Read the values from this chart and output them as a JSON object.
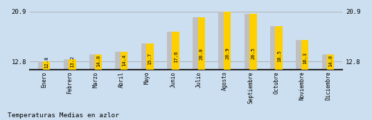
{
  "categories": [
    "Enero",
    "Febrero",
    "Marzo",
    "Abril",
    "Mayo",
    "Junio",
    "Julio",
    "Agosto",
    "Septiembre",
    "Octubre",
    "Noviembre",
    "Diciembre"
  ],
  "values": [
    12.8,
    13.2,
    14.0,
    14.4,
    15.7,
    17.6,
    20.0,
    20.9,
    20.5,
    18.5,
    16.3,
    14.0
  ],
  "bar_color": "#FFD000",
  "shadow_color": "#C0C0C0",
  "bg_color": "#CCDFF0",
  "axis_line_color": "#222222",
  "grid_color": "#AAAAAA",
  "title": "Temperaturas Medias en azlor",
  "ylim_min": 11.5,
  "ylim_max": 21.8,
  "yticks": [
    12.8,
    20.9
  ],
  "value_fontsize": 5.2,
  "label_fontsize": 5.5,
  "title_fontsize": 6.8
}
